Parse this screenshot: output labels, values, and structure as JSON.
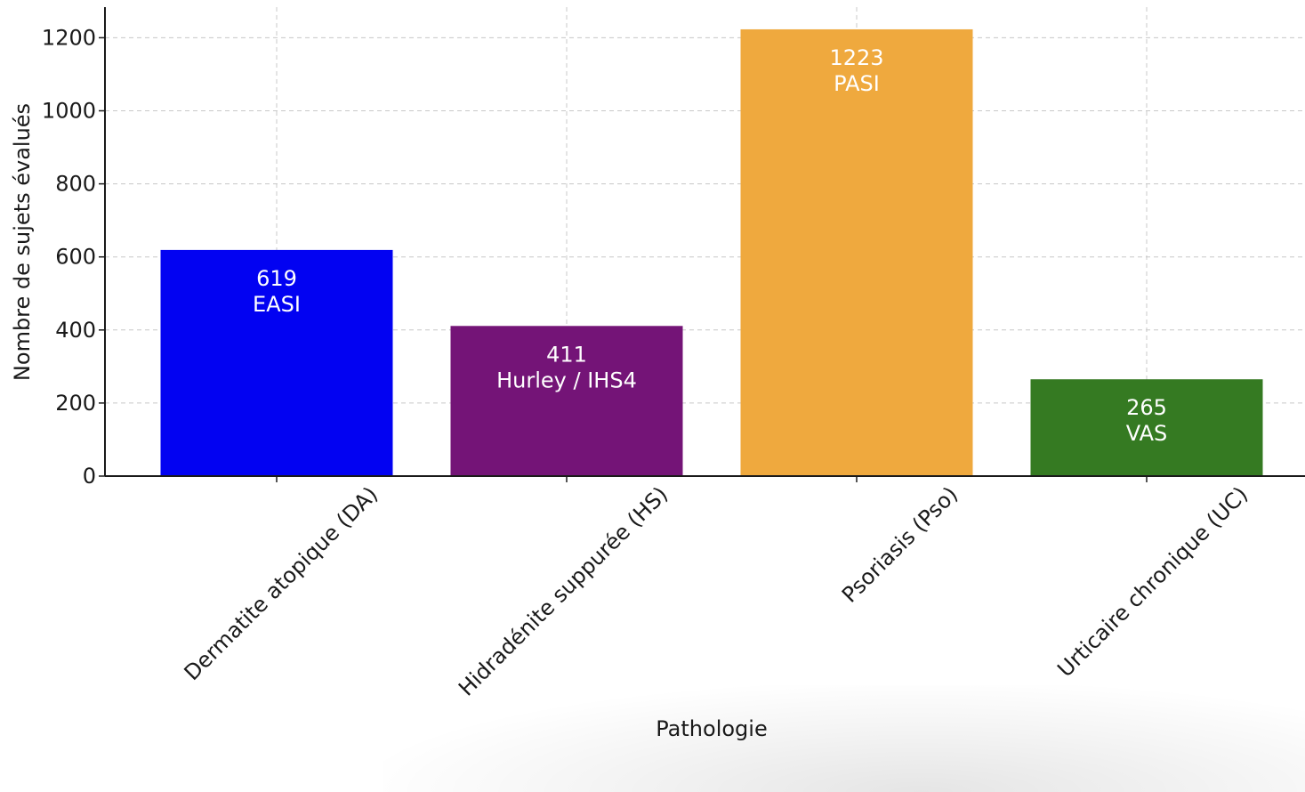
{
  "chart_data": {
    "type": "bar",
    "title": "",
    "xlabel": "Pathologie",
    "ylabel": "Nombre de sujets évalués",
    "ylim": [
      0,
      1280
    ],
    "yticks": [
      0,
      200,
      400,
      600,
      800,
      1000,
      1200
    ],
    "grid": true,
    "categories": [
      "Dermatite atopique (DA)",
      "Hidradénite suppurée (HS)",
      "Psoriasis (Pso)",
      "Urticaire chronique (UC)"
    ],
    "values": [
      619,
      411,
      1223,
      265
    ],
    "scores": [
      "EASI",
      "Hurley / IHS4",
      "PASI",
      "VAS"
    ],
    "colors": [
      "#0202f2",
      "#741477",
      "#efa93e",
      "#357a22"
    ]
  }
}
